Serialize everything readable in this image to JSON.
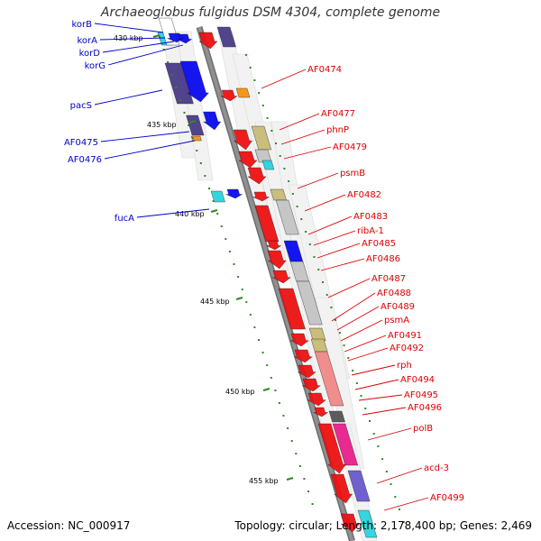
{
  "title": "Archaeoglobus fulgidus DSM 4304, complete genome",
  "footer": {
    "accession": "Accession: NC_000917",
    "summary": "Topology: circular; Length: 2,178,400 bp; Genes: 2,469"
  },
  "colors": {
    "backbone": "#909090",
    "tick": "#2e8b22",
    "forward_label": "#0000cc",
    "reverse_label": "#dd0000",
    "red": "#ee1111",
    "blue": "#0a0aee",
    "navy": "#4a3a88",
    "cyan": "#2ad4dd",
    "orange": "#f29412",
    "olive": "#c8bb77",
    "gray": "#c4c4c4",
    "pink": "#f08888",
    "magenta": "#e8208c",
    "purple": "#6a5acd"
  },
  "kbp_ticks": [
    "430 kbp",
    "435 kbp",
    "440 kbp",
    "445 kbp",
    "450 kbp",
    "455 kbp"
  ],
  "left_labels": [
    "korB",
    "korA",
    "korD",
    "korG",
    "pacS",
    "AF0475",
    "AF0476",
    "fucA"
  ],
  "right_labels": [
    "AF0474",
    "AF0477",
    "phnP",
    "AF0479",
    "psmB",
    "AF0482",
    "AF0483",
    "ribA-1",
    "AF0485",
    "AF0486",
    "AF0487",
    "AF0488",
    "AF0489",
    "psmA",
    "AF0491",
    "AF0492",
    "rph",
    "AF0494",
    "AF0495",
    "AF0496",
    "polB",
    "acd-3",
    "AF0499"
  ]
}
